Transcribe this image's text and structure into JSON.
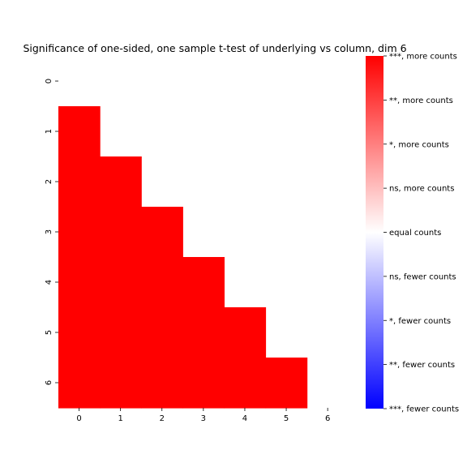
{
  "chart_data": {
    "type": "heatmap",
    "title": "Significance of one-sided, one sample t-test of underlying vs column, dim 6",
    "x_ticks": [
      "0",
      "1",
      "2",
      "3",
      "4",
      "5",
      "6"
    ],
    "y_ticks": [
      "0",
      "1",
      "2",
      "3",
      "4",
      "5",
      "6"
    ],
    "xlabel": "",
    "ylabel": "",
    "cell_value_range": [
      -4,
      4
    ],
    "cells": [
      {
        "row": 1,
        "col": 0,
        "value": 4
      },
      {
        "row": 2,
        "col": 0,
        "value": 4
      },
      {
        "row": 2,
        "col": 1,
        "value": 4
      },
      {
        "row": 3,
        "col": 0,
        "value": 4
      },
      {
        "row": 3,
        "col": 1,
        "value": 4
      },
      {
        "row": 3,
        "col": 2,
        "value": 4
      },
      {
        "row": 4,
        "col": 0,
        "value": 4
      },
      {
        "row": 4,
        "col": 1,
        "value": 4
      },
      {
        "row": 4,
        "col": 2,
        "value": 4
      },
      {
        "row": 4,
        "col": 3,
        "value": 4
      },
      {
        "row": 5,
        "col": 0,
        "value": 4
      },
      {
        "row": 5,
        "col": 1,
        "value": 4
      },
      {
        "row": 5,
        "col": 2,
        "value": 4
      },
      {
        "row": 5,
        "col": 3,
        "value": 4
      },
      {
        "row": 5,
        "col": 4,
        "value": 4
      },
      {
        "row": 6,
        "col": 0,
        "value": 4
      },
      {
        "row": 6,
        "col": 1,
        "value": 4
      },
      {
        "row": 6,
        "col": 2,
        "value": 4
      },
      {
        "row": 6,
        "col": 3,
        "value": 4
      },
      {
        "row": 6,
        "col": 4,
        "value": 4
      },
      {
        "row": 6,
        "col": 5,
        "value": 4
      }
    ],
    "colorbar": {
      "colormap": "bwr",
      "low_color": "#0000ff",
      "mid_color": "#ffffff",
      "high_color": "#ff0000",
      "labels": [
        "***, more counts",
        "**, more counts",
        "*, more counts",
        "ns, more counts",
        "equal counts",
        "ns, fewer counts",
        "*, fewer counts",
        "**, fewer counts",
        "***, fewer counts"
      ]
    }
  }
}
